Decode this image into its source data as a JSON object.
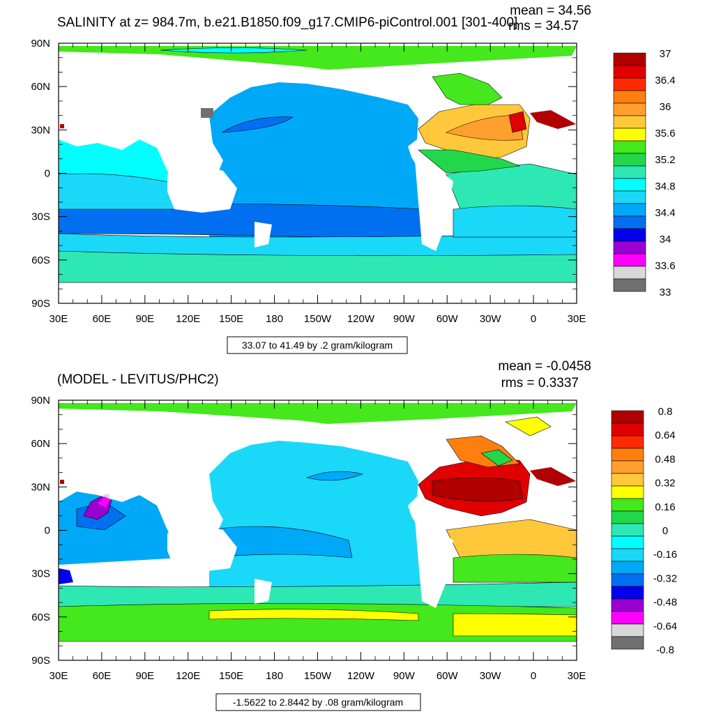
{
  "chart_data": [
    {
      "type": "heatmap",
      "title": "SALINITY at z= 984.7m, b.e21.B1850.f09_g17.CMIP6-piControl.001 [301-400]",
      "stats": {
        "mean": "mean = 34.56",
        "rms": "rms = 34.57"
      },
      "lat_ticks": [
        "90N",
        "60N",
        "30N",
        "0",
        "30S",
        "60S",
        "90S"
      ],
      "lon_ticks": [
        "30E",
        "60E",
        "90E",
        "120E",
        "150E",
        "180",
        "150W",
        "120W",
        "90W",
        "60W",
        "30W",
        "0",
        "30E"
      ],
      "xlim": [
        30,
        390
      ],
      "ylim": [
        -90,
        90
      ],
      "caption": "33.07 to 41.49 by .2 gram/kilogram",
      "colorbar": {
        "labels": [
          "37",
          "36.4",
          "36",
          "35.6",
          "35.2",
          "34.8",
          "34.4",
          "34",
          "33.6",
          "33"
        ],
        "colors": [
          "#b00000",
          "#e00000",
          "#ff2a00",
          "#ff7f0e",
          "#ff9f2e",
          "#ffc83a",
          "#ffff00",
          "#44e81c",
          "#22d84a",
          "#2ee8b4",
          "#00ffff",
          "#1ad8f8",
          "#00a8f8",
          "#0070f0",
          "#0000ee",
          "#9a00d0",
          "#ff00ff",
          "#d8d8d8",
          "#707070"
        ]
      },
      "regions": [
        {
          "name": "pacific-basin",
          "value": 34.45
        },
        {
          "name": "pacific-high-band",
          "value": 34.2
        },
        {
          "name": "indian-ocean",
          "value": 34.7
        },
        {
          "name": "southern-ocean-band",
          "value": 34.6
        },
        {
          "name": "north-atlantic",
          "value": 35.6
        },
        {
          "name": "south-atlantic",
          "value": 34.7
        },
        {
          "name": "arctic",
          "value": 35.0
        },
        {
          "name": "med-outflow",
          "value": 36.8
        }
      ]
    },
    {
      "type": "heatmap",
      "title": "(MODEL - LEVITUS/PHC2)",
      "stats": {
        "mean": "mean = -0.0458",
        "rms": "rms = 0.3337"
      },
      "lat_ticks": [
        "90N",
        "60N",
        "30N",
        "0",
        "30S",
        "60S",
        "90S"
      ],
      "lon_ticks": [
        "30E",
        "60E",
        "90E",
        "120E",
        "150E",
        "180",
        "150W",
        "120W",
        "90W",
        "60W",
        "30W",
        "0",
        "30E"
      ],
      "xlim": [
        30,
        390
      ],
      "ylim": [
        -90,
        90
      ],
      "caption": "-1.5622 to 2.8442 by .08 gram/kilogram",
      "colorbar": {
        "labels": [
          "0.8",
          "0.64",
          "0.48",
          "0.32",
          "0.16",
          "0",
          "-0.16",
          "-0.32",
          "-0.48",
          "-0.64",
          "-0.8"
        ],
        "colors": [
          "#b00000",
          "#e00000",
          "#ff2a00",
          "#ff7f0e",
          "#ff9f2e",
          "#ffc83a",
          "#ffff00",
          "#44e81c",
          "#22d84a",
          "#2ee8b4",
          "#00ffff",
          "#1ad8f8",
          "#00a8f8",
          "#0070f0",
          "#0000ee",
          "#9a00d0",
          "#ff00ff",
          "#d8d8d8",
          "#707070"
        ]
      },
      "regions": [
        {
          "name": "pacific-basin",
          "value": -0.2
        },
        {
          "name": "indian-ocean",
          "value": -0.3
        },
        {
          "name": "southern-ocean-band",
          "value": 0.1
        },
        {
          "name": "north-atlantic",
          "value": 0.7
        },
        {
          "name": "south-atlantic",
          "value": 0.35
        },
        {
          "name": "arctic",
          "value": 0.05
        },
        {
          "name": "bay-of-bengal",
          "value": -0.6
        },
        {
          "name": "weddell-sector",
          "value": 0.2
        }
      ]
    }
  ]
}
